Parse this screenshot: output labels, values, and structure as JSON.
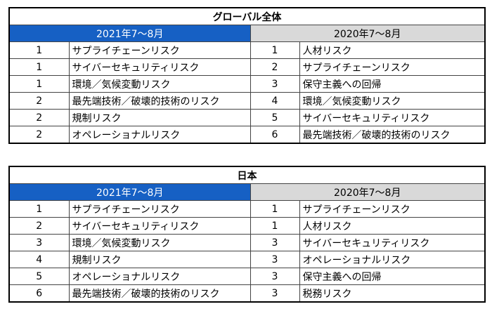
{
  "tables": [
    {
      "title": "グローバル全体",
      "headers": [
        "2021年7～8月",
        "2020年7～8月"
      ],
      "rows": [
        [
          1,
          "サプライチェーンリスク",
          1,
          "人材リスク"
        ],
        [
          1,
          "サイバーセキュリティリスク",
          2,
          "サプライチェーンリスク"
        ],
        [
          1,
          "環境／気候変動リスク",
          3,
          "保守主義への回帰"
        ],
        [
          2,
          "最先端技術／破壊的技術のリスク",
          4,
          "環境／気候変動リスク"
        ],
        [
          2,
          "規制リスク",
          5,
          "サイバーセキュリティリスク"
        ],
        [
          2,
          "オペレーショナルリスク",
          6,
          "最先端技術／破壊的技術のリスク"
        ]
      ]
    },
    {
      "title": "日本",
      "headers": [
        "2021年7～8月",
        "2020年7～8月"
      ],
      "rows": [
        [
          1,
          "サプライチェーンリスク",
          1,
          "サプライチェーンリスク"
        ],
        [
          2,
          "サイバーセキュリティリスク",
          1,
          "人材リスク"
        ],
        [
          3,
          "環境／気候変動リスク",
          3,
          "サイバーセキュリティリスク"
        ],
        [
          4,
          "規制リスク",
          3,
          "オペレーショナルリスク"
        ],
        [
          5,
          "オペレーショナルリスク",
          3,
          "保守主義への回帰"
        ],
        [
          6,
          "最先端技術／破壊的技術のリスク",
          3,
          "税務リスク"
        ]
      ]
    }
  ]
}
